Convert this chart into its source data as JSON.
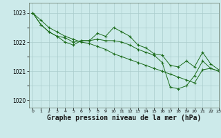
{
  "background_color": "#cceaea",
  "grid_color": "#aacccc",
  "line_color": "#1a6b1a",
  "marker_color": "#1a6b1a",
  "xlabel": "Graphe pression niveau de la mer (hPa)",
  "xlabel_fontsize": 7,
  "ylim": [
    1019.75,
    1023.35
  ],
  "xlim": [
    -0.5,
    23
  ],
  "yticks": [
    1020,
    1021,
    1022,
    1023
  ],
  "xticks": [
    0,
    1,
    2,
    3,
    4,
    5,
    6,
    7,
    8,
    9,
    10,
    11,
    12,
    13,
    14,
    15,
    16,
    17,
    18,
    19,
    20,
    21,
    22,
    23
  ],
  "series": [
    [
      1023.0,
      1022.75,
      1022.5,
      1022.35,
      1022.2,
      1022.1,
      1022.0,
      1021.95,
      1021.85,
      1021.75,
      1021.6,
      1021.5,
      1021.4,
      1021.3,
      1021.2,
      1021.1,
      1021.0,
      1020.9,
      1020.8,
      1020.7,
      1020.6,
      1021.05,
      1021.1,
      1021.0
    ],
    [
      1023.0,
      1022.6,
      1022.35,
      1022.2,
      1022.15,
      1022.0,
      1022.05,
      1022.05,
      1022.3,
      1022.2,
      1022.5,
      1022.35,
      1022.2,
      1021.9,
      1021.8,
      1021.6,
      1021.55,
      1021.2,
      1021.15,
      1021.35,
      1021.15,
      1021.65,
      1021.25,
      1021.05
    ],
    [
      1023.0,
      1022.6,
      1022.35,
      1022.2,
      1022.0,
      1021.9,
      1022.05,
      1022.05,
      1022.1,
      1022.05,
      1022.05,
      1022.0,
      1021.9,
      1021.75,
      1021.65,
      1021.55,
      1021.3,
      1020.45,
      1020.4,
      1020.5,
      1020.85,
      1021.35,
      1021.1,
      1021.0
    ]
  ]
}
